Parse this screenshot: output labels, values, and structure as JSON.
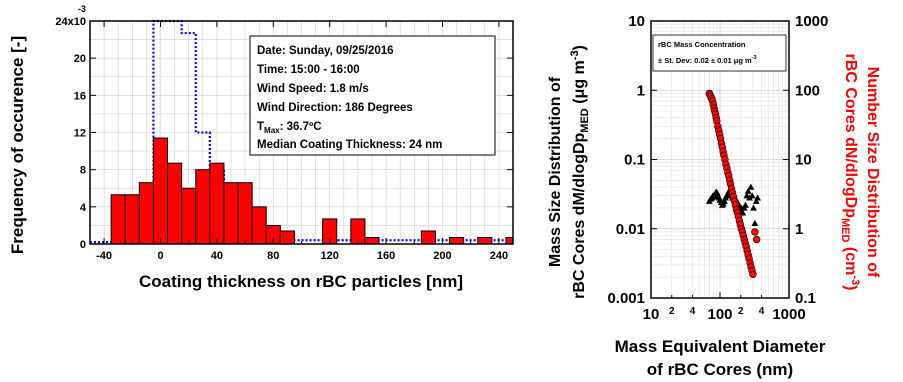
{
  "chart_data": [
    {
      "type": "histogram",
      "ylabel": "Frequency of occurence [-]",
      "xlabel": "Coating thickness on rBC particles [nm]",
      "x_ticks": [
        "-40",
        "0",
        "40",
        "80",
        "120",
        "160",
        "200",
        "240"
      ],
      "x_minor_ticks": [
        "-20",
        "20",
        "60",
        "100",
        "140",
        "180",
        "220"
      ],
      "xlim": [
        -50,
        250
      ],
      "y_ticks": [
        "0",
        "4",
        "8",
        "12",
        "16",
        "20",
        "24x10"
      ],
      "y_top_exponent": "-3",
      "ylim": [
        0,
        24
      ],
      "bar_edges": [
        -40,
        -30,
        -20,
        -10,
        0,
        10,
        20,
        30,
        40,
        50,
        60,
        70,
        80,
        90,
        100,
        110,
        120,
        130,
        140,
        150,
        160,
        170,
        180,
        190,
        200,
        210,
        220,
        230,
        240,
        250
      ],
      "bar_values": [
        0,
        0,
        0,
        0,
        0,
        0,
        0,
        0,
        0,
        0,
        0,
        0,
        0,
        0,
        0,
        0,
        0,
        0,
        0,
        0,
        0,
        0,
        0,
        0,
        0,
        0,
        0,
        0,
        0
      ],
      "bars": [
        {
          "x0": -35,
          "x1": -25,
          "y": 5.3
        },
        {
          "x0": -25,
          "x1": -15,
          "y": 5.3
        },
        {
          "x0": -15,
          "x1": -5,
          "y": 6.6
        },
        {
          "x0": -5,
          "x1": 5,
          "y": 11.4
        },
        {
          "x0": 5,
          "x1": 15,
          "y": 8.7
        },
        {
          "x0": 15,
          "x1": 25,
          "y": 6.0
        },
        {
          "x0": 25,
          "x1": 35,
          "y": 8.0
        },
        {
          "x0": 35,
          "x1": 45,
          "y": 8.7
        },
        {
          "x0": 45,
          "x1": 55,
          "y": 6.6
        },
        {
          "x0": 55,
          "x1": 65,
          "y": 6.6
        },
        {
          "x0": 65,
          "x1": 75,
          "y": 4.0
        },
        {
          "x0": 75,
          "x1": 85,
          "y": 2.0
        },
        {
          "x0": 85,
          "x1": 95,
          "y": 1.4
        },
        {
          "x0": 115,
          "x1": 125,
          "y": 2.7
        },
        {
          "x0": 135,
          "x1": 145,
          "y": 2.7
        },
        {
          "x0": 145,
          "x1": 155,
          "y": 0.7
        },
        {
          "x0": 185,
          "x1": 195,
          "y": 1.4
        },
        {
          "x0": 205,
          "x1": 215,
          "y": 0.7
        },
        {
          "x0": 225,
          "x1": 235,
          "y": 0.7
        },
        {
          "x0": 245,
          "x1": 255,
          "y": 0.7
        }
      ],
      "dotted_step": [
        {
          "x": -50,
          "y": 0.2
        },
        {
          "x": -35,
          "y": 0.2
        },
        {
          "x": -25,
          "y": 1.3
        },
        {
          "x": -15,
          "y": 2.7
        },
        {
          "x": -5,
          "y": 24.0
        },
        {
          "x": 5,
          "y": 24.0
        },
        {
          "x": 15,
          "y": 22.7
        },
        {
          "x": 25,
          "y": 12.0
        },
        {
          "x": 35,
          "y": 8.0
        },
        {
          "x": 45,
          "y": 4.7
        },
        {
          "x": 55,
          "y": 1.3
        },
        {
          "x": 65,
          "y": 0.7
        },
        {
          "x": 75,
          "y": 0.7
        },
        {
          "x": 95,
          "y": 0.4
        },
        {
          "x": 250,
          "y": 0.4
        }
      ],
      "info_box": [
        {
          "text": "Date: Sunday, 09/25/2016"
        },
        {
          "text": "Time: 15:00 - 16:00"
        },
        {
          "text": "Wind Speed: 1.8 m/s"
        },
        {
          "text": "Wind Direction: 186 Degrees"
        },
        {
          "text": "T",
          "sub": "Max",
          "rest": ": 36.7ºC"
        },
        {
          "text": "Median Coating Thickness: 24 nm"
        }
      ],
      "colors": {
        "bars": "#ff0000",
        "dotted": "#0000ff"
      }
    },
    {
      "type": "scatter",
      "xscale": "log",
      "yscale": "log",
      "xlabel_line1": "Mass Equivalent Diameter",
      "xlabel_line2": "of rBC Cores (nm)",
      "xlim": [
        10,
        1000
      ],
      "x_ticks": [
        "10",
        "100",
        "1000"
      ],
      "x_minor_labels": [
        {
          "v": 20,
          "t": "2"
        },
        {
          "v": 40,
          "t": "4"
        },
        {
          "v": 200,
          "t": "2"
        },
        {
          "v": 400,
          "t": "4"
        }
      ],
      "ylabel_left_line1": "Mass Size Distribution of",
      "ylabel_left_line2": "rBC Cores dM/dlogDp",
      "ylabel_left_sub": "MED",
      "ylabel_left_unit": " (μg m",
      "ylabel_left_unit_sup": "-3",
      "ylabel_left_close": ")",
      "ylim_left": [
        0.001,
        10
      ],
      "y_left_ticks": [
        "0.001",
        "0.01",
        "0.1",
        "1",
        "10"
      ],
      "ylabel_right_line1": "Number Size Distribution of",
      "ylabel_right_line2": "rBC Cores dN/dlogDp",
      "ylabel_right_sub": "MED",
      "ylabel_right_unit": " (cm",
      "ylabel_right_unit_sup": "-3",
      "ylabel_right_close": ")",
      "ylim_right": [
        0.1,
        1000
      ],
      "y_right_ticks": [
        "0.1",
        "1",
        "10",
        "100",
        "1000"
      ],
      "legend_title": "rBC Mass Concentration",
      "legend_line": "± St. Dev: 0.02 ± 0.01 μg m",
      "legend_sup": "-3",
      "mass_series": {
        "name": "",
        "marker": "triangle",
        "color": "#000000",
        "x": [
          70,
          73,
          76,
          79,
          82,
          85,
          88,
          91,
          94,
          97,
          100,
          104,
          108,
          112,
          116,
          120,
          125,
          130,
          135,
          140,
          146,
          152,
          158,
          165,
          172,
          180,
          188,
          196,
          205,
          214,
          224,
          234,
          245,
          256,
          268,
          280,
          293,
          306,
          320,
          335,
          350
        ],
        "y": [
          0.025,
          0.027,
          0.028,
          0.03,
          0.029,
          0.032,
          0.034,
          0.033,
          0.03,
          0.028,
          0.026,
          0.024,
          0.022,
          0.023,
          0.025,
          0.028,
          0.03,
          0.032,
          0.035,
          0.033,
          0.03,
          0.028,
          0.03,
          0.028,
          0.026,
          0.024,
          0.022,
          0.018,
          0.02,
          0.017,
          0.02,
          0.022,
          0.03,
          0.035,
          0.028,
          0.04,
          0.03,
          0.02,
          0.012,
          0.025,
          0.028
        ]
      },
      "number_series": {
        "name": "",
        "marker": "circle",
        "color": "#ff0000",
        "x": [
          70,
          72,
          74,
          76,
          78,
          80,
          82,
          84,
          86,
          88,
          90,
          93,
          96,
          99,
          102,
          105,
          108,
          111,
          114,
          118,
          122,
          126,
          130,
          134,
          138,
          142,
          147,
          152,
          157,
          162,
          167,
          173,
          179,
          185,
          191,
          197,
          204,
          211,
          218,
          225,
          232,
          240,
          248,
          256,
          264,
          273,
          282,
          291,
          300,
          320,
          340
        ],
        "y": [
          90,
          85,
          80,
          75,
          70,
          62,
          55,
          50,
          45,
          40,
          36,
          30,
          26,
          23,
          20,
          17,
          15,
          13,
          11.5,
          10,
          8.5,
          7.5,
          6.5,
          5.8,
          5.0,
          4.4,
          3.8,
          3.3,
          2.9,
          2.5,
          2.2,
          1.9,
          1.7,
          1.5,
          1.3,
          1.15,
          1.0,
          0.9,
          0.8,
          0.7,
          0.62,
          0.55,
          0.48,
          0.42,
          0.37,
          0.32,
          0.28,
          0.25,
          0.22,
          0.9,
          0.7
        ]
      }
    }
  ]
}
